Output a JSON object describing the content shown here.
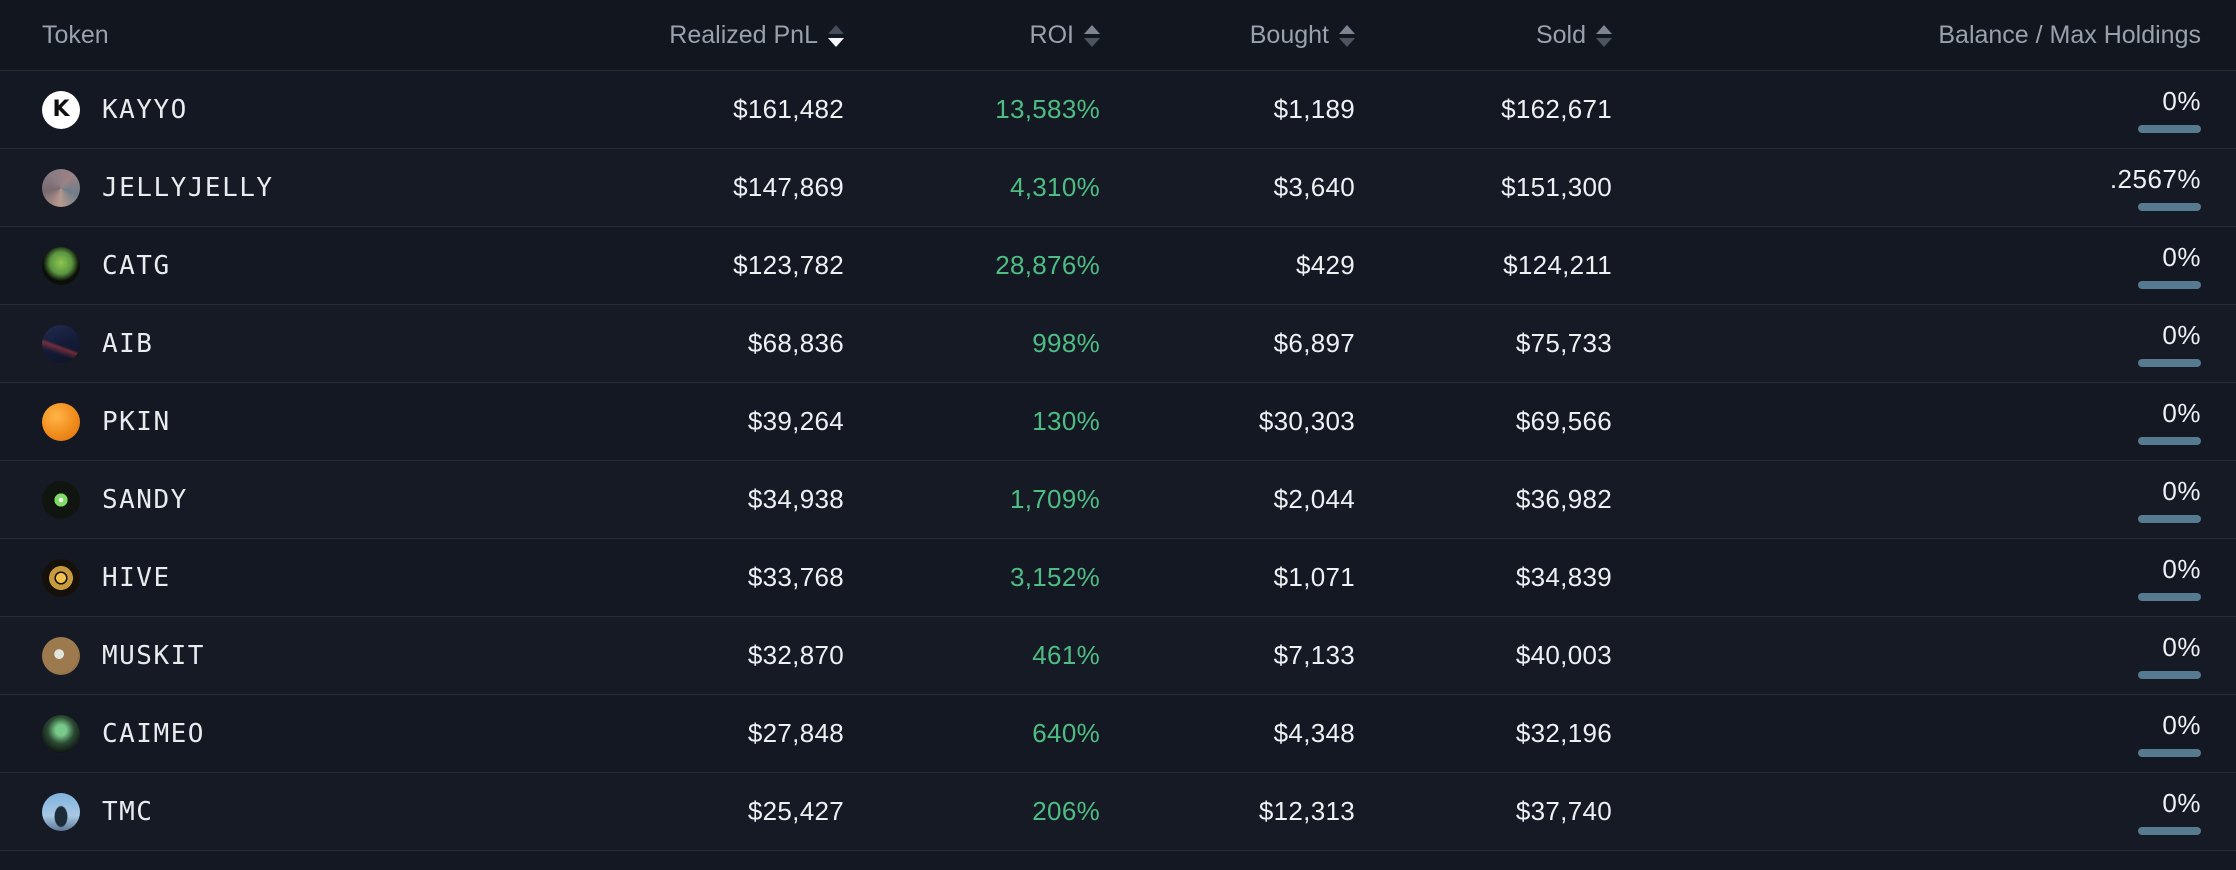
{
  "table": {
    "columns": [
      {
        "key": "token",
        "label": "Token",
        "sortable": false,
        "align": "left"
      },
      {
        "key": "realized_pnl",
        "label": "Realized PnL",
        "sortable": true,
        "sort": "desc"
      },
      {
        "key": "roi",
        "label": "ROI",
        "sortable": true,
        "sort": "none"
      },
      {
        "key": "bought",
        "label": "Bought",
        "sortable": true,
        "sort": "none"
      },
      {
        "key": "sold",
        "label": "Sold",
        "sortable": true,
        "sort": "none"
      },
      {
        "key": "balance",
        "label": "Balance / Max Holdings",
        "sortable": false,
        "align": "right"
      }
    ],
    "rows": [
      {
        "token": "KAYYO",
        "realized_pnl": "$161,482",
        "roi": "13,583%",
        "bought": "$1,189",
        "sold": "$162,671",
        "balance": "0%",
        "icon": {
          "name": "kayyo-logo",
          "glyph": "K",
          "color": "#101010",
          "bg": "#ffffff"
        }
      },
      {
        "token": "JELLYJELLY",
        "realized_pnl": "$147,869",
        "roi": "4,310%",
        "bought": "$3,640",
        "sold": "$151,300",
        "balance": ".2567%",
        "icon": {
          "name": "jellyjelly-photo",
          "glyph": "",
          "color": "",
          "bg": "conic-gradient(from 40deg, #9b8284, #6e7d8a, #b89a8e, #7a6a70, #8a7c83, #9b8284)"
        }
      },
      {
        "token": "CATG",
        "realized_pnl": "$123,782",
        "roi": "28,876%",
        "bought": "$429",
        "sold": "$124,211",
        "balance": "0%",
        "icon": {
          "name": "catg-green-cat",
          "glyph": "",
          "color": "",
          "bg": "radial-gradient(circle at 50% 42%, #8ec74f 0%, #5a9440 38%, #0b0e09 62%)"
        }
      },
      {
        "token": "AIB",
        "realized_pnl": "$68,836",
        "roi": "998%",
        "bought": "$6,897",
        "sold": "$75,733",
        "balance": "0%",
        "icon": {
          "name": "aib-poster",
          "glyph": "",
          "color": "",
          "bg": "linear-gradient(200deg, rgba(190,60,60,0) 52%, rgba(190,60,60,0.55) 58%, rgba(190,60,60,0) 72%), linear-gradient(160deg, #232c52 0%, #131a36 55%, #0e1428 100%)"
        }
      },
      {
        "token": "PKIN",
        "realized_pnl": "$39,264",
        "roi": "130%",
        "bought": "$30,303",
        "sold": "$69,566",
        "balance": "0%",
        "icon": {
          "name": "pumpkin",
          "glyph": "",
          "color": "",
          "bg": "radial-gradient(circle at 38% 35%, #ffb648 0%, #f08c1c 55%, #d96f10 100%)"
        }
      },
      {
        "token": "SANDY",
        "realized_pnl": "$34,938",
        "roi": "1,709%",
        "bought": "$2,044",
        "sold": "$36,982",
        "balance": "0%",
        "icon": {
          "name": "sandy-pixel-eye",
          "glyph": "",
          "color": "",
          "bg": "radial-gradient(circle at 50% 50%, #f3e9ee 0 8%, #7ddb66 9% 24%, #101510 25%)"
        }
      },
      {
        "token": "HIVE",
        "realized_pnl": "$33,768",
        "roi": "3,152%",
        "bought": "$1,071",
        "sold": "$34,839",
        "balance": "0%",
        "icon": {
          "name": "hive-honeycomb",
          "glyph": "",
          "color": "",
          "bg": "radial-gradient(circle at 50% 50%, #f2c14e 0 18%, #151009 19% 24%, #c79a3e 25% 44%, #151009 45%)"
        }
      },
      {
        "token": "MUSKIT",
        "realized_pnl": "$32,870",
        "roi": "461%",
        "bought": "$7,133",
        "sold": "$40,003",
        "balance": "0%",
        "icon": {
          "name": "muskit-astronaut",
          "glyph": "",
          "color": "",
          "bg": "radial-gradient(circle at 45% 45%, #dfe4dd 0 16%, #9c7a4e 17% 62%, #6e5534 100%)"
        }
      },
      {
        "token": "CAIMEO",
        "realized_pnl": "$27,848",
        "roi": "640%",
        "bought": "$4,348",
        "sold": "$32,196",
        "balance": "0%",
        "icon": {
          "name": "caimeo-terminal",
          "glyph": "",
          "color": "",
          "bg": "radial-gradient(circle at 50% 40%, #79c98a 0 18%, #2c4a34 45%, #0d120e 78%)"
        }
      },
      {
        "token": "TMC",
        "realized_pnl": "$25,427",
        "roi": "206%",
        "bought": "$12,313",
        "sold": "$37,740",
        "balance": "0%",
        "icon": {
          "name": "tmc-figure-sky",
          "glyph": "",
          "color": "",
          "bg": "radial-gradient(ellipse 26% 42% at 50% 62%, #1d2a38 0 60%, rgba(29,42,56,0) 70%), linear-gradient(180deg, #7fb2dc 0%, #a8c8e4 60%, #5d7894 100%)"
        }
      }
    ]
  },
  "balance_bar": {
    "fill_pct": 100,
    "color": "#567a8f"
  },
  "colors": {
    "background": "#141822",
    "header_text": "#99a1ac",
    "row_separator": "#272d39",
    "value_text": "#eef1f4",
    "roi_green": "#4dbd83",
    "active_sort_arrow": "#f4f6f8",
    "inactive_sort_arrow": "#4d5460"
  }
}
